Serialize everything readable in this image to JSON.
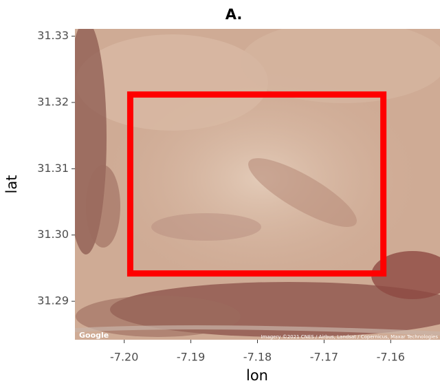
{
  "chart_data": {
    "type": "map",
    "title": "A.",
    "x_label": "lon",
    "y_label": "lat",
    "xlim": [
      -7.2074,
      -7.1526
    ],
    "ylim": [
      31.2842,
      31.3311
    ],
    "xticks": [
      {
        "value": -7.2,
        "label": "-7.20"
      },
      -7.19,
      -7.18,
      -7.17,
      -7.16
    ],
    "yticks": [
      31.29,
      {
        "value": 31.3,
        "label": "31.30"
      },
      31.31,
      31.32,
      31.33
    ],
    "rectangle": {
      "xlim": [
        -7.1991,
        -7.1611
      ],
      "ylim": [
        31.2942,
        31.3212
      ],
      "color": "#ff0000"
    },
    "attribution": {
      "logo": "Google",
      "imagery": "Imagery ©2021 CNES / Airbus, Landsat / Copernicus, Maxar Technologies"
    }
  }
}
